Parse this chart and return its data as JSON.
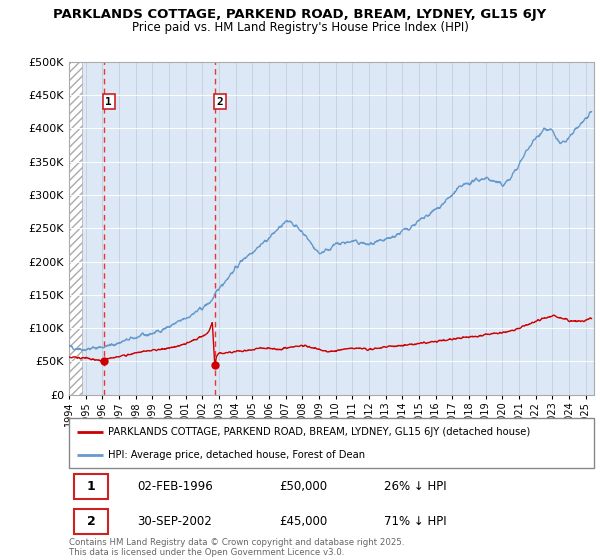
{
  "title": "PARKLANDS COTTAGE, PARKEND ROAD, BREAM, LYDNEY, GL15 6JY",
  "subtitle": "Price paid vs. HM Land Registry's House Price Index (HPI)",
  "hpi_label": "HPI: Average price, detached house, Forest of Dean",
  "price_label": "PARKLANDS COTTAGE, PARKEND ROAD, BREAM, LYDNEY, GL15 6JY (detached house)",
  "ylim": [
    0,
    500000
  ],
  "yticks": [
    0,
    50000,
    100000,
    150000,
    200000,
    250000,
    300000,
    350000,
    400000,
    450000,
    500000
  ],
  "ytick_labels": [
    "£0",
    "£50K",
    "£100K",
    "£150K",
    "£200K",
    "£250K",
    "£300K",
    "£350K",
    "£400K",
    "£450K",
    "£500K"
  ],
  "xlim_start": 1994.0,
  "xlim_end": 2025.5,
  "hpi_color": "#6699cc",
  "price_color": "#cc0000",
  "dashed_line_color": "#ee3333",
  "annotation_box_color": "#cc2222",
  "purchase1_x": 1996.085,
  "purchase1_y": 50000,
  "purchase1_label": "1",
  "purchase1_date": "02-FEB-1996",
  "purchase1_price": "£50,000",
  "purchase1_hpi": "26% ↓ HPI",
  "purchase2_x": 2002.747,
  "purchase2_y": 45000,
  "purchase2_label": "2",
  "purchase2_date": "30-SEP-2002",
  "purchase2_price": "£45,000",
  "purchase2_hpi": "71% ↓ HPI",
  "copyright_text": "Contains HM Land Registry data © Crown copyright and database right 2025.\nThis data is licensed under the Open Government Licence v3.0.",
  "plot_bg_color": "#dce8f5",
  "hatch_end_x": 1994.75
}
